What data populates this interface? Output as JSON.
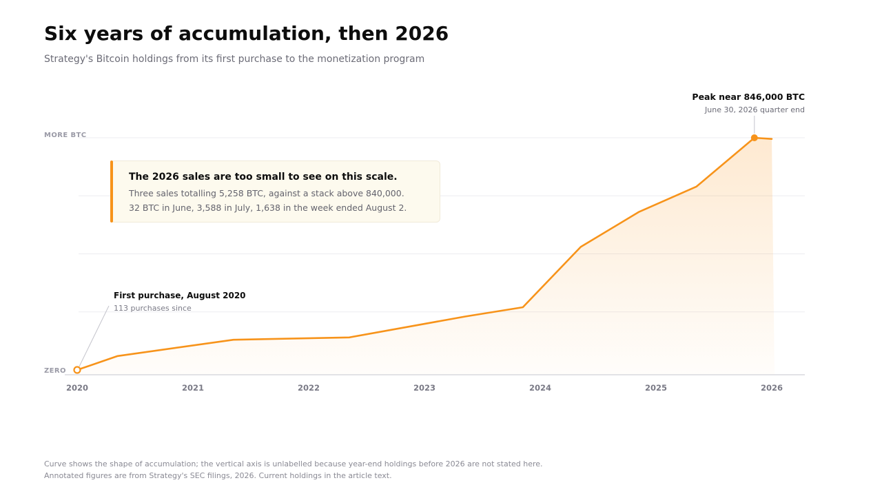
{
  "header": {
    "title": "Six years of accumulation, then 2026",
    "subtitle": "Strategy's Bitcoin holdings from its first purchase to the monetization program"
  },
  "colors": {
    "accent": "#f7931a",
    "grid": "#ececf0",
    "axis_label": "#9a9aa6",
    "text_muted": "#6b6b76"
  },
  "chart_data": {
    "type": "area",
    "x": [
      2020.0,
      2020.35,
      2021.35,
      2022.35,
      2023.35,
      2023.85,
      2024.35,
      2024.85,
      2025.35,
      2025.85,
      2026.0
    ],
    "y": [
      0,
      0.06,
      0.13,
      0.14,
      0.23,
      0.27,
      0.53,
      0.68,
      0.79,
      1.0,
      0.995
    ],
    "xlim": [
      2020,
      2026.3
    ],
    "ylim": [
      0,
      1
    ],
    "x_ticks": [
      "2020",
      "2021",
      "2022",
      "2023",
      "2024",
      "2025",
      "2026"
    ],
    "y_axis_labels": {
      "top": "MORE BTC",
      "bottom": "ZERO"
    },
    "grid": true,
    "annotations": {
      "start": {
        "title": "First purchase, August 2020",
        "detail": "113 purchases since"
      },
      "peak": {
        "title": "Peak near 846,000 BTC",
        "detail": "June 30, 2026 quarter end"
      }
    }
  },
  "callout": {
    "title": "The 2026 sales are too small to see on this scale.",
    "line1": "Three sales totalling 5,258 BTC, against a stack above 840,000.",
    "line2": "32 BTC in June, 3,588 in July, 1,638 in the week ended August 2."
  },
  "footnotes": {
    "line1": "Curve shows the shape of accumulation; the vertical axis is unlabelled because year-end holdings before 2026 are not stated here.",
    "line2": "Annotated figures are from Strategy's SEC filings, 2026. Current holdings in the article text."
  }
}
